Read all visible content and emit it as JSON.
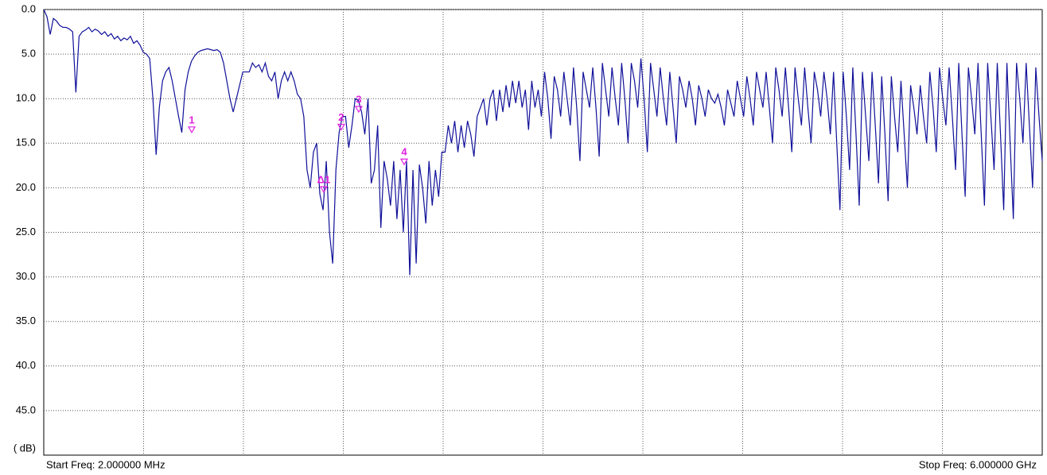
{
  "chart_data": {
    "type": "line",
    "y_unit_label": "( dB)",
    "start_label": "Start Freq: 2.000000 MHz",
    "stop_label": "Stop Freq: 6.000000 GHz",
    "xlim": [
      0.002,
      6
    ],
    "x_divisions": 10,
    "ylim": [
      0,
      50
    ],
    "y_inverted": true,
    "yticks": [
      {
        "value": 0,
        "label": "0.0"
      },
      {
        "value": 5,
        "label": "5.0"
      },
      {
        "value": 10,
        "label": "10.0"
      },
      {
        "value": 15,
        "label": "15.0"
      },
      {
        "value": 20,
        "label": "20.0"
      },
      {
        "value": 25,
        "label": "25.0"
      },
      {
        "value": 30,
        "label": "30.0"
      },
      {
        "value": 35,
        "label": "35.0"
      },
      {
        "value": 40,
        "label": "40.0"
      },
      {
        "value": 45,
        "label": "45.0"
      }
    ],
    "grid": true,
    "series": [
      {
        "color": "#10109a",
        "values": [
          0,
          0.8,
          2.8,
          1,
          1.3,
          1.8,
          2,
          2,
          2.2,
          2.5,
          9.3,
          3,
          2.5,
          2.3,
          2,
          2.5,
          2.2,
          2.4,
          2.8,
          2.5,
          3,
          2.7,
          3.3,
          3,
          3.5,
          3.2,
          3.4,
          3,
          3.8,
          3.5,
          4,
          4.8,
          5,
          5.5,
          10,
          16.3,
          11,
          8,
          7,
          6.5,
          8,
          10,
          12,
          13.8,
          9,
          7,
          5.8,
          5.2,
          4.8,
          4.6,
          4.5,
          4.4,
          4.5,
          4.6,
          4.5,
          4.8,
          6,
          8,
          10,
          11.5,
          10,
          8.5,
          7,
          7,
          7,
          6,
          6.5,
          6.2,
          7,
          6,
          7.5,
          8,
          7,
          10,
          8,
          7,
          8,
          7,
          8,
          9.5,
          10,
          12,
          18,
          20,
          16,
          15,
          20.7,
          22.5,
          17,
          25,
          28.5,
          18,
          13.8,
          12,
          12,
          15.5,
          13,
          10,
          10.2,
          11.5,
          14,
          10,
          19.5,
          18,
          13,
          24.5,
          17,
          19,
          22,
          17,
          23.5,
          18,
          25,
          17,
          29.8,
          18,
          28.5,
          17.4,
          20,
          24,
          17,
          22,
          18,
          21,
          16,
          16,
          13,
          15,
          12.5,
          16,
          13,
          15.5,
          12.5,
          14,
          16.5,
          12,
          11,
          10,
          13,
          10,
          9,
          12.5,
          9,
          11.5,
          8.5,
          11,
          8,
          10.5,
          8,
          11,
          9,
          13.5,
          8,
          11,
          9,
          12,
          7,
          10,
          14.5,
          7.5,
          9,
          12,
          7,
          10,
          13,
          6.5,
          11,
          17,
          7,
          9,
          11,
          6.5,
          11,
          16.5,
          6,
          9,
          12,
          6.5,
          10,
          13,
          6,
          10,
          15,
          6,
          8,
          11,
          5.5,
          10,
          16,
          6,
          9,
          12,
          6.5,
          10,
          13,
          7,
          11,
          15,
          7.5,
          9,
          11,
          8,
          10,
          13,
          8.5,
          10,
          12,
          9,
          10,
          10.5,
          9.5,
          11,
          13,
          9,
          10.5,
          12,
          8,
          10,
          12,
          7.5,
          10,
          13,
          7,
          9,
          11,
          7,
          11,
          15,
          6.5,
          9,
          12,
          6.5,
          11,
          16,
          6.5,
          10,
          13,
          6.5,
          11,
          15,
          7,
          9,
          12,
          7,
          10,
          14,
          7,
          15,
          22.5,
          7,
          12,
          18,
          6.5,
          14,
          22,
          7,
          12,
          17,
          7,
          13,
          19.5,
          7.5,
          14,
          21.5,
          7.5,
          12,
          16,
          8,
          14,
          20,
          8.5,
          11,
          14,
          8.5,
          12,
          15,
          7,
          11,
          16,
          6.5,
          10,
          13,
          6.5,
          12,
          18,
          6,
          14,
          21,
          6.5,
          10,
          14,
          6,
          14,
          22,
          6,
          12,
          18,
          6,
          14,
          22.5,
          6,
          15,
          23.5,
          6,
          10,
          15,
          6,
          13,
          20,
          6.5,
          12,
          17
        ]
      }
    ],
    "marker_color": "#e020e0",
    "markers": [
      {
        "label": "1",
        "x": 0.891,
        "value": 13.8
      },
      {
        "label": "Δ1",
        "x": 1.684,
        "value": 20.5
      },
      {
        "label": "2",
        "x": 1.789,
        "value": 13.5
      },
      {
        "label": "3",
        "x": 1.894,
        "value": 11.5
      },
      {
        "label": "4",
        "x": 2.167,
        "value": 17.4
      }
    ]
  }
}
